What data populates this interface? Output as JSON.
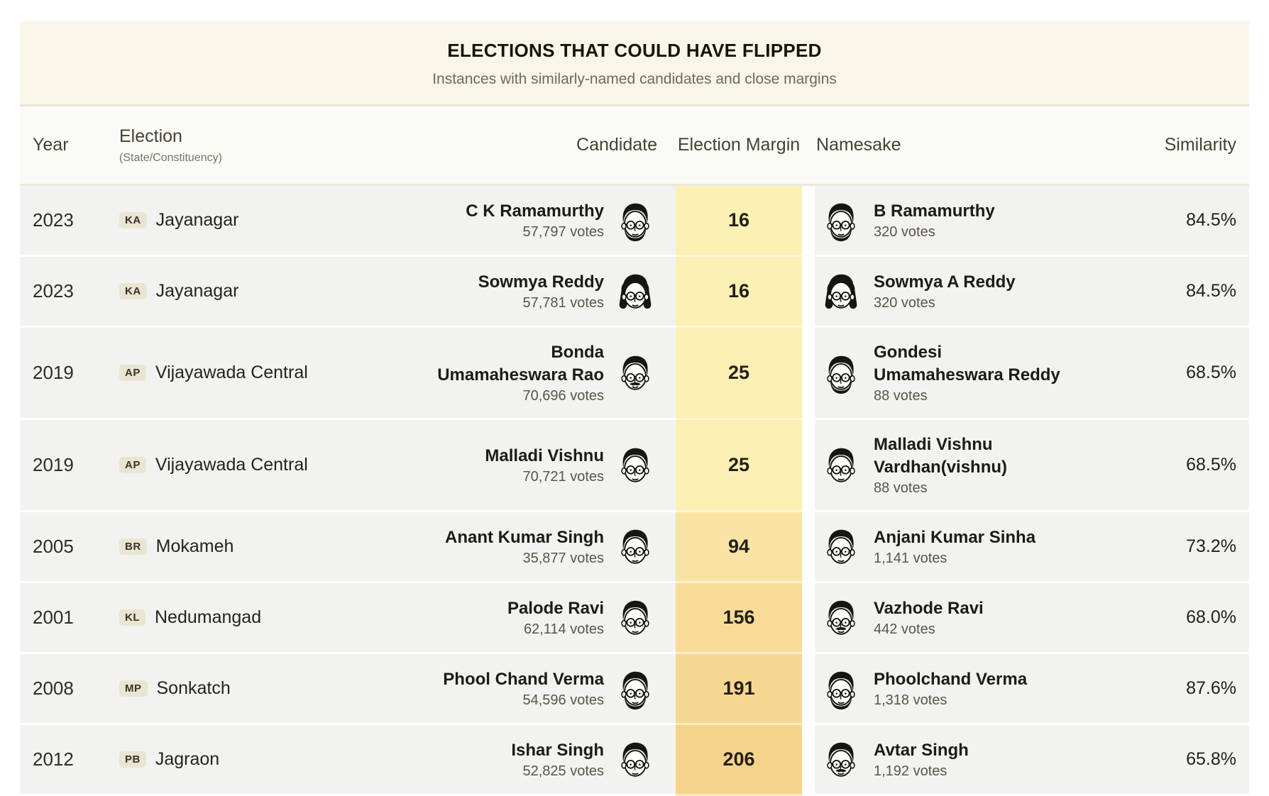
{
  "title": "ELECTIONS THAT COULD HAVE FLIPPED",
  "subtitle": "Instances with similarly-named candidates and close margins",
  "columns": {
    "year": "Year",
    "election": "Election",
    "election_sub": "(State/Constituency)",
    "candidate": "Candidate",
    "margin": "Election Margin",
    "namesake": "Namesake",
    "similarity": "Similarity"
  },
  "colors": {
    "title_block_bg": "#f8f5e9",
    "header_bg": "#fafaf7",
    "row_bg": "#f2f2f0",
    "badge_bg": "#eae5d2",
    "margin_scale_light": "#fcf0b5",
    "margin_scale_dark": "#f5d38a"
  },
  "rows": [
    {
      "year": "2023",
      "state": "KA",
      "constituency": "Jayanagar",
      "candidate": {
        "name": "C K Ramamurthy",
        "votes": "57,797 votes",
        "avatar": "bearded-man"
      },
      "margin": "16",
      "margin_color": "#fcf0b5",
      "namesake": {
        "name": "B Ramamurthy",
        "votes": "320 votes",
        "avatar": "bearded-man"
      },
      "similarity": "84.5%"
    },
    {
      "year": "2023",
      "state": "KA",
      "constituency": "Jayanagar",
      "candidate": {
        "name": "Sowmya Reddy",
        "votes": "57,781 votes",
        "avatar": "woman-long-hair"
      },
      "margin": "16",
      "margin_color": "#fcf0b5",
      "namesake": {
        "name": "Sowmya A Reddy",
        "votes": "320 votes",
        "avatar": "woman-long-hair"
      },
      "similarity": "84.5%"
    },
    {
      "year": "2019",
      "state": "AP",
      "constituency": "Vijayawada Central",
      "candidate": {
        "name": "Bonda Umamaheswara Rao",
        "votes": "70,696 votes",
        "avatar": "man-mustache"
      },
      "margin": "25",
      "margin_color": "#fcefb3",
      "namesake": {
        "name": "Gondesi Umamaheswara Reddy",
        "votes": "88 votes",
        "avatar": "bearded-man"
      },
      "similarity": "68.5%"
    },
    {
      "year": "2019",
      "state": "AP",
      "constituency": "Vijayawada Central",
      "candidate": {
        "name": "Malladi Vishnu",
        "votes": "70,721 votes",
        "avatar": "man-glasses"
      },
      "margin": "25",
      "margin_color": "#fcefb3",
      "namesake": {
        "name": "Malladi Vishnu Vardhan(vishnu)",
        "votes": "88 votes",
        "avatar": "man-glasses"
      },
      "similarity": "68.5%"
    },
    {
      "year": "2005",
      "state": "BR",
      "constituency": "Mokameh",
      "candidate": {
        "name": "Anant Kumar Singh",
        "votes": "35,877 votes",
        "avatar": "man-glasses"
      },
      "margin": "94",
      "margin_color": "#f9e3a4",
      "namesake": {
        "name": "Anjani Kumar Sinha",
        "votes": "1,141 votes",
        "avatar": "man-glasses"
      },
      "similarity": "73.2%"
    },
    {
      "year": "2001",
      "state": "KL",
      "constituency": "Nedumangad",
      "candidate": {
        "name": "Palode Ravi",
        "votes": "62,114 votes",
        "avatar": "man-glasses"
      },
      "margin": "156",
      "margin_color": "#f7db97",
      "namesake": {
        "name": "Vazhode Ravi",
        "votes": "442 votes",
        "avatar": "man-mustache"
      },
      "similarity": "68.0%"
    },
    {
      "year": "2008",
      "state": "MP",
      "constituency": "Sonkatch",
      "candidate": {
        "name": "Phool Chand Verma",
        "votes": "54,596 votes",
        "avatar": "bearded-man"
      },
      "margin": "191",
      "margin_color": "#f6d791",
      "namesake": {
        "name": "Phoolchand Verma",
        "votes": "1,318 votes",
        "avatar": "bearded-man"
      },
      "similarity": "87.6%"
    },
    {
      "year": "2012",
      "state": "PB",
      "constituency": "Jagraon",
      "candidate": {
        "name": "Ishar Singh",
        "votes": "52,825 votes",
        "avatar": "man-glasses"
      },
      "margin": "206",
      "margin_color": "#f5d38a",
      "namesake": {
        "name": "Avtar Singh",
        "votes": "1,192 votes",
        "avatar": "man-mustache"
      },
      "similarity": "65.8%"
    }
  ]
}
